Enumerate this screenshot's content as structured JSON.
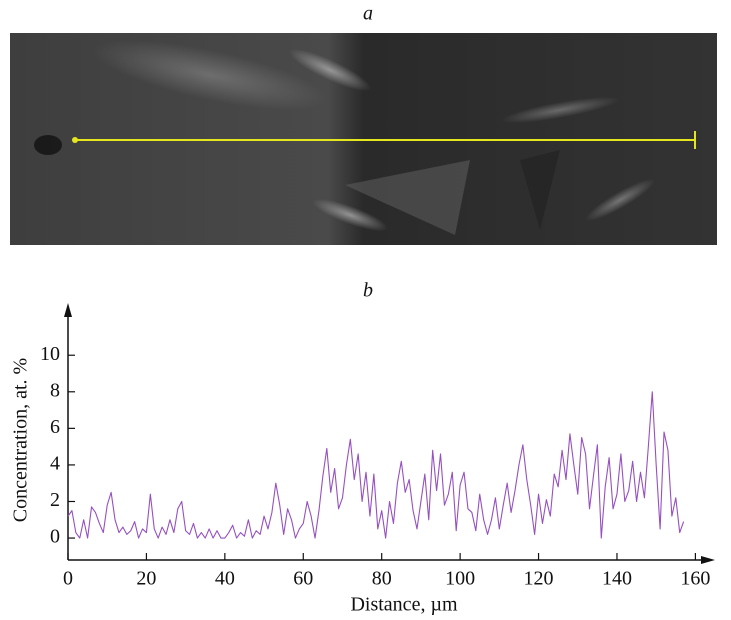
{
  "panel_a_label": "a",
  "chart_data": {
    "type": "line",
    "panel_label": "b",
    "xlabel": "Distance, µm",
    "ylabel": "Concentration, at. %",
    "color": "#9650c0",
    "xlim": [
      0,
      165
    ],
    "ylim": [
      -1.2,
      12.2
    ],
    "xticks": [
      0,
      20,
      40,
      60,
      80,
      100,
      120,
      140,
      160
    ],
    "yticks": [
      0,
      2,
      4,
      6,
      8,
      10
    ],
    "x": [
      0,
      1,
      2,
      3,
      4,
      5,
      6,
      7,
      8,
      9,
      10,
      11,
      12,
      13,
      14,
      15,
      16,
      17,
      18,
      19,
      20,
      21,
      22,
      23,
      24,
      25,
      26,
      27,
      28,
      29,
      30,
      31,
      32,
      33,
      34,
      35,
      36,
      37,
      38,
      39,
      40,
      41,
      42,
      43,
      44,
      45,
      46,
      47,
      48,
      49,
      50,
      51,
      52,
      53,
      54,
      55,
      56,
      57,
      58,
      59,
      60,
      61,
      62,
      63,
      64,
      65,
      66,
      67,
      68,
      69,
      70,
      71,
      72,
      73,
      74,
      75,
      76,
      77,
      78,
      79,
      80,
      81,
      82,
      83,
      84,
      85,
      86,
      87,
      88,
      89,
      90,
      91,
      92,
      93,
      94,
      95,
      96,
      97,
      98,
      99,
      100,
      101,
      102,
      103,
      104,
      105,
      106,
      107,
      108,
      109,
      110,
      111,
      112,
      113,
      114,
      115,
      116,
      117,
      118,
      119,
      120,
      121,
      122,
      123,
      124,
      125,
      126,
      127,
      128,
      129,
      130,
      131,
      132,
      133,
      134,
      135,
      136,
      137,
      138,
      139,
      140,
      141,
      142,
      143,
      144,
      145,
      146,
      147,
      148,
      149,
      150,
      151,
      152,
      153,
      154,
      155,
      156,
      157
    ],
    "values": [
      1.2,
      1.5,
      0.3,
      0,
      1.0,
      0,
      1.7,
      1.4,
      0.8,
      0.3,
      1.8,
      2.5,
      1.0,
      0.3,
      0.6,
      0.2,
      0.4,
      0.9,
      0,
      0.5,
      0.3,
      2.4,
      0.5,
      0,
      0.6,
      0.2,
      1.0,
      0.3,
      1.6,
      2.0,
      0.4,
      0.2,
      0.8,
      0,
      0.3,
      0,
      0.5,
      0,
      0.4,
      0,
      0,
      0.3,
      0.7,
      0,
      0.3,
      0.1,
      1.0,
      0,
      0.4,
      0.2,
      1.2,
      0.5,
      1.4,
      3.0,
      1.8,
      0.2,
      1.6,
      1.0,
      0,
      0.5,
      0.8,
      2.0,
      1.2,
      0,
      1.5,
      3.4,
      4.9,
      2.5,
      3.8,
      1.6,
      2.2,
      4.0,
      5.4,
      3.2,
      4.6,
      2.0,
      3.6,
      1.2,
      3.5,
      0.5,
      1.5,
      0,
      2.0,
      0.8,
      3.0,
      4.2,
      2.5,
      3.2,
      1.5,
      0.5,
      2.0,
      3.5,
      1.0,
      4.8,
      2.6,
      4.6,
      1.8,
      2.4,
      3.6,
      0.4,
      2.9,
      3.6,
      1.6,
      1.4,
      0.4,
      2.4,
      1.0,
      0.2,
      1.0,
      2.2,
      0.5,
      1.8,
      3.0,
      1.4,
      2.6,
      4.0,
      5.1,
      3.2,
      1.8,
      0.2,
      2.4,
      0.8,
      2.1,
      1.2,
      3.5,
      2.8,
      4.8,
      3.2,
      5.7,
      4.0,
      2.4,
      5.5,
      4.6,
      1.6,
      3.4,
      5.1,
      0,
      2.8,
      4.4,
      1.6,
      2.4,
      4.6,
      2.0,
      2.6,
      4.2,
      2.0,
      3.6,
      2.2,
      5.0,
      8.0,
      4.0,
      0.5,
      5.8,
      4.8,
      1.2,
      2.2,
      0.3,
      0.9
    ]
  }
}
